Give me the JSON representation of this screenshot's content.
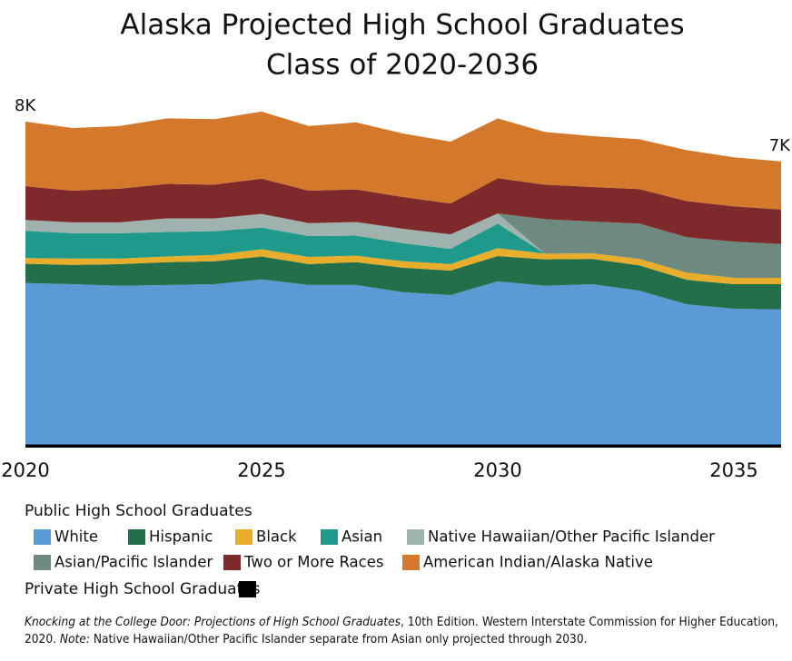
{
  "chart_data": {
    "type": "stacked_area",
    "title": "Alaska Projected High School Graduates",
    "subtitle": "Class of 2020-2036",
    "x": [
      2020,
      2021,
      2022,
      2023,
      2024,
      2025,
      2026,
      2027,
      2028,
      2029,
      2030,
      2031,
      2032,
      2033,
      2034,
      2035,
      2036
    ],
    "xlim": [
      2020,
      2036
    ],
    "xticks": [
      2020,
      2025,
      2030,
      2035
    ],
    "ylim": [
      0,
      9000
    ],
    "legend_headers": [
      "Public High School Graduates",
      "Private High School Graduates"
    ],
    "annotations": [
      "8K",
      "7K"
    ],
    "series": [
      {
        "name": "Private High School Graduates",
        "color": "#000000",
        "values": [
          80,
          80,
          80,
          80,
          80,
          80,
          80,
          80,
          80,
          80,
          80,
          80,
          80,
          80,
          80,
          80,
          80
        ]
      },
      {
        "name": "White",
        "color": "#5b9bd5",
        "values": [
          4020,
          3990,
          3950,
          3970,
          3990,
          4110,
          3970,
          3970,
          3790,
          3720,
          4060,
          3950,
          3990,
          3830,
          3490,
          3380,
          3360
        ]
      },
      {
        "name": "Hispanic",
        "color": "#236f49",
        "values": [
          480,
          480,
          540,
          570,
          570,
          570,
          520,
          570,
          610,
          610,
          630,
          660,
          630,
          630,
          610,
          610,
          630
        ]
      },
      {
        "name": "Black",
        "color": "#e8ad2a",
        "values": [
          140,
          160,
          140,
          140,
          160,
          180,
          180,
          160,
          160,
          160,
          200,
          140,
          140,
          160,
          180,
          160,
          160
        ]
      },
      {
        "name": "Asian",
        "color": "#1f9a8a",
        "values": [
          680,
          630,
          630,
          610,
          590,
          540,
          520,
          500,
          450,
          380,
          610,
          0,
          0,
          0,
          0,
          0,
          0
        ]
      },
      {
        "name": "Native Hawaiian/Other Pacific Islander",
        "color": "#9fb2ae",
        "values": [
          270,
          270,
          270,
          340,
          320,
          340,
          320,
          340,
          360,
          360,
          250,
          0,
          0,
          0,
          0,
          0,
          0
        ]
      },
      {
        "name": "Asian/Pacific Islander",
        "color": "#6e8a80",
        "values": [
          0,
          0,
          0,
          0,
          0,
          0,
          0,
          0,
          0,
          0,
          0,
          860,
          790,
          880,
          880,
          900,
          840
        ]
      },
      {
        "name": "Two or More Races",
        "color": "#7f2a2a",
        "values": [
          840,
          790,
          840,
          860,
          840,
          880,
          810,
          810,
          790,
          770,
          880,
          860,
          860,
          860,
          900,
          880,
          860
        ]
      },
      {
        "name": "American Indian/Alaska Native",
        "color": "#d4782b",
        "values": [
          1610,
          1560,
          1560,
          1630,
          1630,
          1670,
          1610,
          1670,
          1580,
          1540,
          1490,
          1310,
          1270,
          1240,
          1270,
          1220,
          1200
        ]
      }
    ]
  },
  "footnote": {
    "source_title": "Knocking at the College Door: Projections of High School Graduates",
    "source_rest": ", 10th Edition. Western Interstate Commission for Higher Education, 2020.",
    "note_label": "Note:",
    "note_text": "Native Hawaiian/Other Pacific Islander separate from Asian only projected through 2030."
  }
}
